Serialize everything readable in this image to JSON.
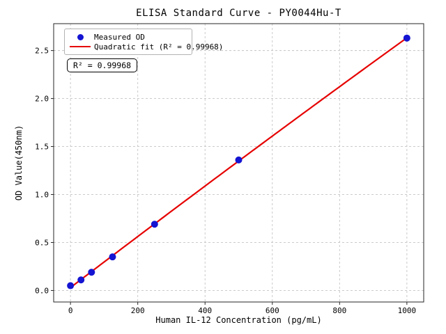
{
  "chart_data": {
    "type": "scatter",
    "title": "ELISA Standard Curve - PY0044Hu-T",
    "xlabel": "Human IL-12 Concentration (pg/mL)",
    "ylabel": "OD Value(450nm)",
    "xlim": [
      -50,
      1050
    ],
    "ylim": [
      -0.12,
      2.78
    ],
    "grid": true,
    "xticks": [
      {
        "value": 0,
        "label": "0"
      },
      {
        "value": 200,
        "label": "200"
      },
      {
        "value": 400,
        "label": "400"
      },
      {
        "value": 600,
        "label": "600"
      },
      {
        "value": 800,
        "label": "800"
      },
      {
        "value": 1000,
        "label": "1000"
      }
    ],
    "yticks": [
      {
        "value": 0.0,
        "label": "0.0"
      },
      {
        "value": 0.5,
        "label": "0.5"
      },
      {
        "value": 1.0,
        "label": "1.0"
      },
      {
        "value": 1.5,
        "label": "1.5"
      },
      {
        "value": 2.0,
        "label": "2.0"
      },
      {
        "value": 2.5,
        "label": "2.5"
      }
    ],
    "legend": {
      "position": "upper-left",
      "entries": [
        {
          "label": "Measured OD",
          "marker": "circle",
          "color": "#1414d2"
        },
        {
          "label": "Quadratic fit (R² = 0.99968)",
          "marker": "line",
          "color": "#e60000"
        }
      ]
    },
    "annotation": "R² = 0.99968",
    "r_squared": "0.99968",
    "series": [
      {
        "name": "Measured OD",
        "type": "scatter",
        "color": "#1414d2",
        "x": [
          0,
          31.25,
          62.5,
          125,
          250,
          500,
          1000
        ],
        "y": [
          0.05,
          0.11,
          0.19,
          0.35,
          0.69,
          1.36,
          2.63
        ]
      },
      {
        "name": "Quadratic fit",
        "type": "quadratic-fit",
        "color": "#e60000",
        "fit_range": [
          0,
          1000
        ]
      }
    ],
    "colors": {
      "grid": "#c4c4c4",
      "spine": "#262626",
      "background": "#ffffff"
    }
  }
}
